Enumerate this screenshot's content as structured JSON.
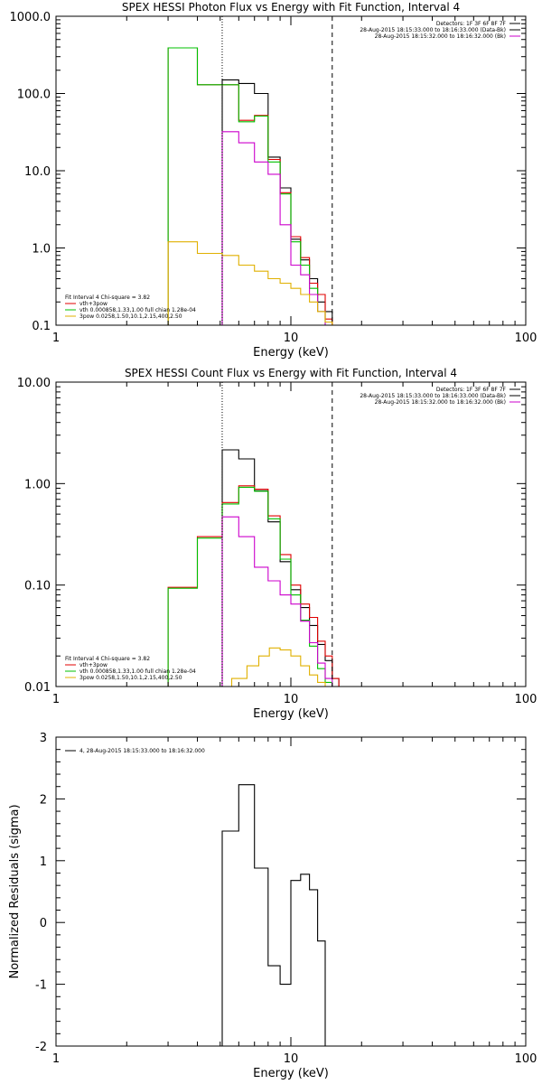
{
  "chart_data": [
    {
      "type": "line",
      "title": "SPEX HESSI Photon Flux vs Energy with Fit Function, Interval 4",
      "xlabel": "Energy (keV)",
      "ylabel": "",
      "xscale": "log",
      "yscale": "log",
      "xlim": [
        1,
        100
      ],
      "ylim": [
        0.1,
        1000
      ],
      "xticks": [
        "1",
        "10",
        "100"
      ],
      "yticks": [
        "0.1",
        "1.0",
        "10.0",
        "100.0",
        "1000.0"
      ],
      "vlines": [
        {
          "x": 5.1,
          "style": "dotted"
        },
        {
          "x": 15.0,
          "style": "dashed"
        }
      ],
      "header_lines": [
        "Detectors: 1F 3F 6F 8F 7F",
        "28-Aug-2015 18:15:33.000 to 18:16:33.000 (Data-Bk)",
        "28-Aug-2015 18:15:32.000 to 18:16:32.000 (Bk)"
      ],
      "header_colors": [
        "#000000",
        "#000000",
        "#cc00cc"
      ],
      "legend_title": "Fit Interval  4    Chi-square = 3.82",
      "series": [
        {
          "name": "Data-Bk",
          "color": "#000000",
          "edges": [
            5.1,
            6,
            7,
            8,
            9,
            10,
            11,
            12,
            13,
            14,
            15
          ],
          "values": [
            150,
            135,
            100,
            15,
            6,
            1.3,
            0.7,
            0.4,
            0.2,
            0.15
          ]
        },
        {
          "name": "vth+3pow",
          "color": "#e00000",
          "edges": [
            3,
            4,
            5.1,
            6,
            7,
            8,
            9,
            10,
            11,
            12,
            13,
            14,
            15
          ],
          "values": [
            390,
            130,
            130,
            45,
            52,
            14,
            5.2,
            1.4,
            0.75,
            0.35,
            0.25,
            0.12
          ]
        },
        {
          "name": "vth 0.000858,1.33,1.00  full chian 1.28e-04",
          "color": "#00c000",
          "edges": [
            3,
            4,
            5.1,
            6,
            7,
            8,
            9,
            10,
            11,
            12,
            13,
            14,
            15
          ],
          "values": [
            390,
            130,
            130,
            43,
            51,
            13,
            5,
            1.2,
            0.6,
            0.3,
            0.15,
            0.1
          ]
        },
        {
          "name": "Fit component bk",
          "color": "#cc00cc",
          "edges": [
            5.1,
            6,
            7,
            8,
            9,
            10,
            11,
            12,
            13,
            14,
            15
          ],
          "values": [
            32,
            23,
            13,
            9,
            2,
            0.6,
            0.45,
            0.25,
            0.15,
            0.1
          ],
          "nolegend": true
        },
        {
          "name": "3pow 0.0258,1.50,10.1,2.15,400,2.50",
          "color": "#e0b000",
          "edges": [
            3,
            4,
            5.1,
            6,
            7,
            8,
            9,
            10,
            11,
            12,
            13,
            14,
            15
          ],
          "values": [
            1.2,
            0.85,
            0.8,
            0.6,
            0.5,
            0.4,
            0.35,
            0.3,
            0.25,
            0.2,
            0.15,
            0.11
          ]
        }
      ]
    },
    {
      "type": "line",
      "title": "SPEX HESSI Count Flux vs Energy with Fit Function, Interval 4",
      "xlabel": "Energy (keV)",
      "ylabel": "",
      "xscale": "log",
      "yscale": "log",
      "xlim": [
        1,
        100
      ],
      "ylim": [
        0.01,
        10
      ],
      "xticks": [
        "1",
        "10",
        "100"
      ],
      "yticks": [
        "0.01",
        "0.10",
        "1.00",
        "10.00"
      ],
      "vlines": [
        {
          "x": 5.1,
          "style": "dotted"
        },
        {
          "x": 15.0,
          "style": "dashed"
        }
      ],
      "header_lines": [
        "Detectors: 1F 3F 6F 8F 7F",
        "28-Aug-2015 18:15:33.000 to 18:16:33.000 (Data-Bk)",
        "28-Aug-2015 18:15:32.000 to 18:16:32.000 (Bk)"
      ],
      "header_colors": [
        "#000000",
        "#000000",
        "#cc00cc"
      ],
      "legend_title": "Fit Interval  4    Chi-square = 3.82",
      "series": [
        {
          "name": "Data-Bk",
          "color": "#000000",
          "edges": [
            5.1,
            6,
            7,
            8,
            9,
            10,
            11,
            12,
            13,
            14,
            15,
            16
          ],
          "values": [
            2.15,
            1.75,
            0.85,
            0.42,
            0.17,
            0.09,
            0.06,
            0.04,
            0.026,
            0.018,
            0.012
          ]
        },
        {
          "name": "vth+3pow",
          "color": "#e00000",
          "edges": [
            3,
            4,
            5.1,
            6,
            7,
            8,
            9,
            10,
            11,
            12,
            13,
            14,
            15,
            16
          ],
          "values": [
            0.095,
            0.3,
            0.65,
            0.95,
            0.88,
            0.48,
            0.2,
            0.1,
            0.065,
            0.048,
            0.028,
            0.02,
            0.012
          ]
        },
        {
          "name": "vth 0.000858,1.33,1.00  full chian 1.28e-04",
          "color": "#00c000",
          "edges": [
            3,
            4,
            5.1,
            6,
            7,
            8,
            9,
            10,
            11,
            12,
            13,
            14,
            15,
            16
          ],
          "values": [
            0.093,
            0.29,
            0.63,
            0.92,
            0.84,
            0.45,
            0.18,
            0.08,
            0.045,
            0.025,
            0.015,
            0.011,
            0.01
          ]
        },
        {
          "name": "Fit component bk",
          "color": "#cc00cc",
          "edges": [
            5.1,
            6,
            7,
            8,
            9,
            10,
            11,
            12,
            13,
            14,
            15,
            16
          ],
          "values": [
            0.47,
            0.3,
            0.15,
            0.11,
            0.08,
            0.065,
            0.044,
            0.027,
            0.017,
            0.012,
            0.01
          ],
          "nolegend": true
        },
        {
          "name": "3pow 0.0258,1.50,10.1,2.15,400,2.50",
          "color": "#e0b000",
          "edges": [
            5.6,
            6.5,
            7.3,
            8.1,
            9,
            10,
            11,
            12,
            13,
            14
          ],
          "values": [
            0.012,
            0.016,
            0.02,
            0.024,
            0.023,
            0.02,
            0.016,
            0.013,
            0.011
          ]
        }
      ]
    },
    {
      "type": "line",
      "title": "",
      "xlabel": "Energy (keV)",
      "ylabel": "Normalized Residuals (sigma)",
      "xscale": "log",
      "yscale": "linear",
      "xlim": [
        1,
        100
      ],
      "ylim": [
        -2,
        3
      ],
      "xticks": [
        "1",
        "10",
        "100"
      ],
      "yticks": [
        "-2",
        "-1",
        "0",
        "1",
        "2",
        "3"
      ],
      "legend_title": "",
      "series": [
        {
          "name": "4, 28-Aug-2015 18:15:33.000 to 18:16:32.000",
          "color": "#000000",
          "edges": [
            5.1,
            6,
            7,
            8,
            9,
            10,
            11,
            12,
            13,
            14,
            15
          ],
          "values": [
            1.48,
            2.23,
            0.88,
            -0.7,
            -1.0,
            0.68,
            0.78,
            0.53,
            -0.3,
            -2.5
          ],
          "legend_top": true
        }
      ]
    }
  ]
}
